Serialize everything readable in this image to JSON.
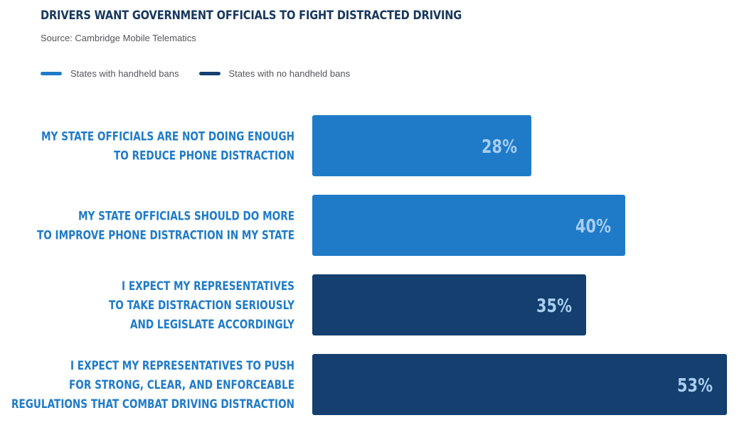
{
  "chart_data": {
    "type": "bar",
    "orientation": "horizontal",
    "title": "DRIVERS WANT GOVERNMENT OFFICIALS TO FIGHT DISTRACTED DRIVING",
    "subtitle": "Source: Cambridge Mobile Telematics",
    "legend_position": "top-left",
    "grid": false,
    "series": [
      {
        "name": "States with handheld bans",
        "color": "#1f7bc8"
      },
      {
        "name": "States with no handheld bans",
        "color": "#143f6f"
      }
    ],
    "categories": [
      [
        "MY STATE OFFICIALS ARE NOT DOING ENOUGH",
        "TO REDUCE PHONE DISTRACTION"
      ],
      [
        "MY STATE OFFICIALS SHOULD DO MORE",
        "TO IMPROVE PHONE DISTRACTION IN MY STATE"
      ],
      [
        "I EXPECT MY REPRESENTATIVES",
        "TO TAKE DISTRACTION SERIOUSLY",
        "AND LEGISLATE ACCORDINGLY"
      ],
      [
        "I EXPECT MY REPRESENTATIVES TO PUSH",
        "FOR STRONG, CLEAR, AND ENFORCEABLE",
        "REGULATIONS THAT COMBAT DRIVING DISTRACTION"
      ]
    ],
    "values": [
      28,
      40,
      35,
      53
    ],
    "value_labels": [
      "28%",
      "40%",
      "35%",
      "53%"
    ],
    "bar_series": [
      0,
      0,
      1,
      1
    ],
    "xlim": [
      0,
      55
    ],
    "label_color": "#1f7bc8",
    "value_label_color": "#a9cdf0"
  }
}
